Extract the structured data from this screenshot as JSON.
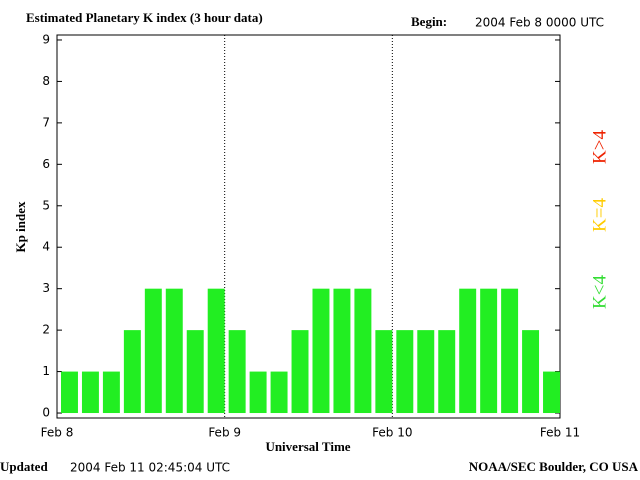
{
  "chart_data": {
    "type": "bar",
    "title": "Estimated Planetary K index (3 hour data)",
    "begin_label": "Begin:",
    "begin_value": "2004 Feb 8 0000 UTC",
    "y_label": "Kp index",
    "x_label": "Universal Time",
    "xtick_labels": [
      "Feb 8",
      "Feb 9",
      "Feb 10",
      "Feb 11"
    ],
    "values": [
      1,
      1,
      1,
      2,
      3,
      3,
      2,
      3,
      2,
      1,
      1,
      2,
      3,
      3,
      3,
      2,
      2,
      2,
      2,
      3,
      3,
      3,
      2,
      1
    ],
    "color": "#22ee22",
    "ylim": [
      -0.12,
      9.12
    ],
    "yticks": [
      0,
      1,
      2,
      3,
      4,
      5,
      6,
      7,
      8,
      9
    ],
    "legend": [
      {
        "name": "K<4",
        "color": "#33dd33"
      },
      {
        "name": "K=4",
        "color": "#ffcc00"
      },
      {
        "name": "K>4",
        "color": "#ee2200"
      }
    ],
    "updated_label": "Updated",
    "updated_value": "2004 Feb 11 02:45:04 UTC",
    "credit": "NOAA/SEC Boulder, CO USA"
  }
}
